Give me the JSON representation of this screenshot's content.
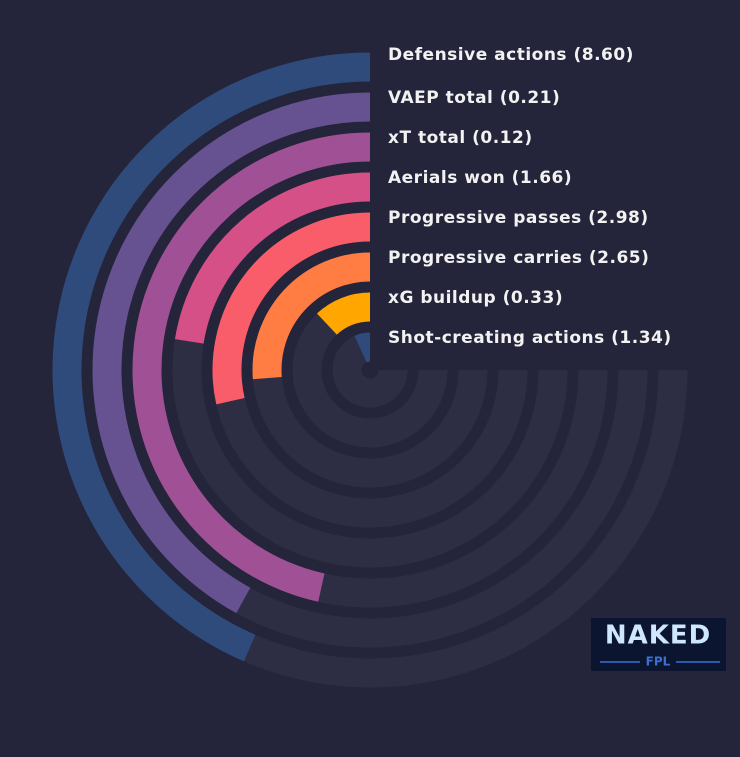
{
  "chart_data": {
    "type": "radial_bar",
    "categories": [
      "Defensive actions (8.60)",
      "VAEP total (0.21)",
      "xT total (0.12)",
      "Aerials won (1.66)",
      "Progressive passes (2.98)",
      "Progressive carries (2.65)",
      "xG buildup (0.33)",
      "Shot-creating actions (1.34)"
    ],
    "values": [
      58,
      56,
      62,
      30,
      38,
      35,
      16,
      9
    ],
    "colors": [
      "#2f4b7c",
      "#665191",
      "#a05195",
      "#d45087",
      "#f95d6a",
      "#ff7c43",
      "#ffa600",
      "#2f4b7c"
    ],
    "xlim": [
      0,
      100
    ],
    "logo": {
      "title": "NAKED",
      "subtitle": "FPL"
    }
  }
}
